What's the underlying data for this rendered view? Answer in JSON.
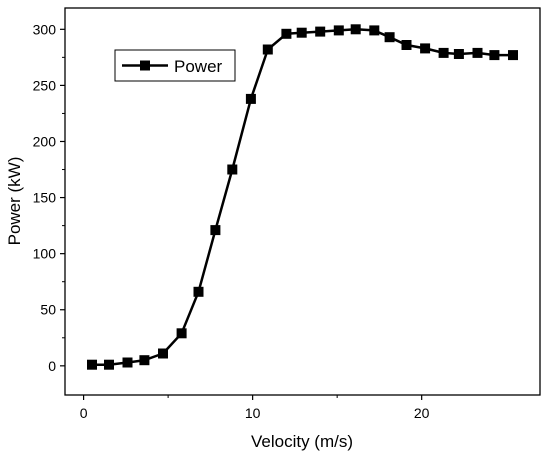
{
  "chart_data": {
    "type": "line",
    "xlabel": "Velocity (m/s)",
    "ylabel": "Power (kW)",
    "xlim": [
      -1.1,
      27
    ],
    "ylim": [
      -26,
      319
    ],
    "xticks": [
      0,
      10,
      20
    ],
    "yticks": [
      0,
      50,
      100,
      150,
      200,
      250,
      300
    ],
    "legend_position": "top-left",
    "grid": false,
    "series": [
      {
        "name": "Power",
        "color": "#000000",
        "marker": "square",
        "x": [
          0.5,
          1.5,
          2.6,
          3.6,
          4.7,
          5.8,
          6.8,
          7.8,
          8.8,
          9.9,
          10.9,
          12.0,
          12.9,
          14.0,
          15.1,
          16.1,
          17.2,
          18.1,
          19.1,
          20.2,
          21.3,
          22.2,
          23.3,
          24.3,
          25.4
        ],
        "values": [
          1,
          1,
          3,
          5,
          11,
          29,
          66,
          121,
          175,
          238,
          282,
          296,
          297,
          298,
          299,
          300,
          299,
          293,
          286,
          283,
          279,
          278,
          279,
          277,
          277
        ]
      }
    ]
  }
}
